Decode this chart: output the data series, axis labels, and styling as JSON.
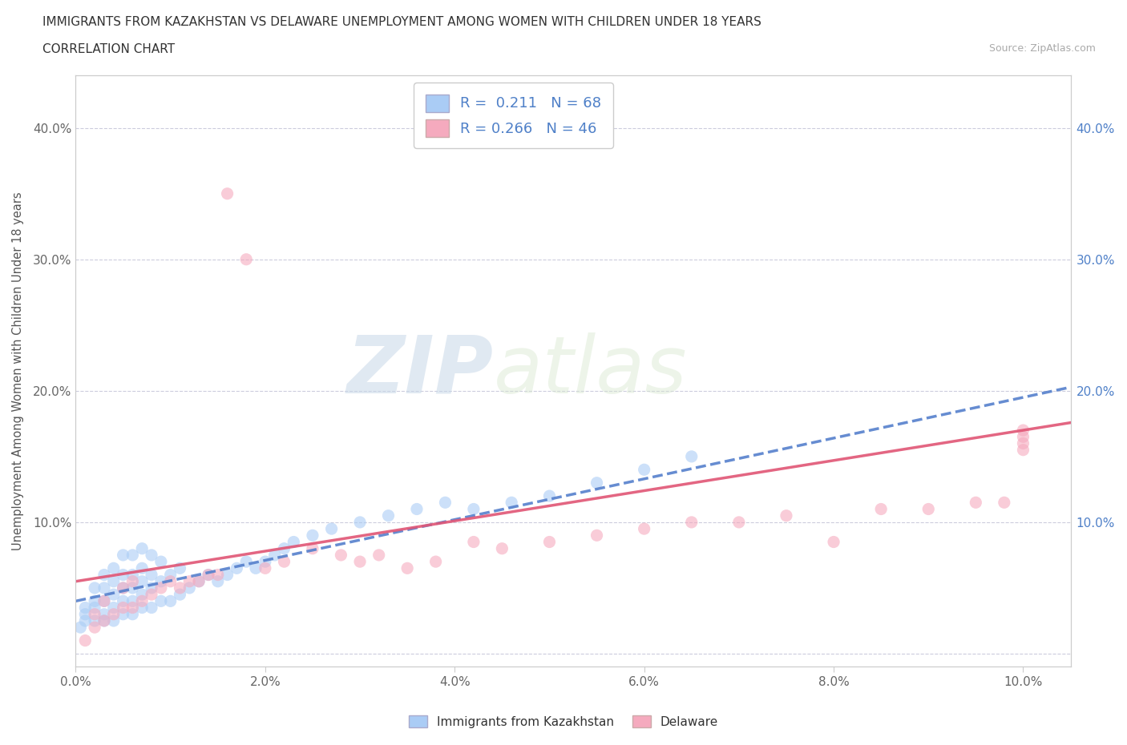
{
  "title_line1": "IMMIGRANTS FROM KAZAKHSTAN VS DELAWARE UNEMPLOYMENT AMONG WOMEN WITH CHILDREN UNDER 18 YEARS",
  "title_line2": "CORRELATION CHART",
  "source_text": "Source: ZipAtlas.com",
  "ylabel": "Unemployment Among Women with Children Under 18 years",
  "xlim": [
    0.0,
    0.105
  ],
  "ylim": [
    -0.01,
    0.44
  ],
  "xtick_vals": [
    0.0,
    0.02,
    0.04,
    0.06,
    0.08,
    0.1
  ],
  "xtick_labels": [
    "0.0%",
    "2.0%",
    "4.0%",
    "6.0%",
    "8.0%",
    "10.0%"
  ],
  "ytick_vals": [
    0.0,
    0.1,
    0.2,
    0.3,
    0.4
  ],
  "ytick_labels_left": [
    "",
    "10.0%",
    "20.0%",
    "30.0%",
    "40.0%"
  ],
  "ytick_labels_right": [
    "",
    "10.0%",
    "20.0%",
    "30.0%",
    "40.0%"
  ],
  "R1": "0.211",
  "N1": "68",
  "R2": "0.266",
  "N2": "46",
  "color_kaz": "#aaccf5",
  "color_del": "#f5aabe",
  "line_color_kaz": "#5580cc",
  "line_color_del": "#e05575",
  "right_tick_color": "#4f80c8",
  "watermark_zip": "ZIP",
  "watermark_atlas": "atlas",
  "legend_label1": "Immigrants from Kazakhstan",
  "legend_label2": "Delaware",
  "scatter_kaz_x": [
    0.0005,
    0.001,
    0.001,
    0.001,
    0.002,
    0.002,
    0.002,
    0.002,
    0.003,
    0.003,
    0.003,
    0.003,
    0.003,
    0.004,
    0.004,
    0.004,
    0.004,
    0.004,
    0.005,
    0.005,
    0.005,
    0.005,
    0.005,
    0.006,
    0.006,
    0.006,
    0.006,
    0.006,
    0.007,
    0.007,
    0.007,
    0.007,
    0.007,
    0.008,
    0.008,
    0.008,
    0.008,
    0.009,
    0.009,
    0.009,
    0.01,
    0.01,
    0.011,
    0.011,
    0.012,
    0.013,
    0.014,
    0.015,
    0.016,
    0.017,
    0.018,
    0.019,
    0.02,
    0.021,
    0.022,
    0.023,
    0.025,
    0.027,
    0.03,
    0.033,
    0.036,
    0.039,
    0.042,
    0.046,
    0.05,
    0.055,
    0.06,
    0.065
  ],
  "scatter_kaz_y": [
    0.02,
    0.025,
    0.03,
    0.035,
    0.025,
    0.035,
    0.04,
    0.05,
    0.025,
    0.03,
    0.04,
    0.05,
    0.06,
    0.025,
    0.035,
    0.045,
    0.055,
    0.065,
    0.03,
    0.04,
    0.05,
    0.06,
    0.075,
    0.03,
    0.04,
    0.05,
    0.06,
    0.075,
    0.035,
    0.045,
    0.055,
    0.065,
    0.08,
    0.035,
    0.05,
    0.06,
    0.075,
    0.04,
    0.055,
    0.07,
    0.04,
    0.06,
    0.045,
    0.065,
    0.05,
    0.055,
    0.06,
    0.055,
    0.06,
    0.065,
    0.07,
    0.065,
    0.07,
    0.075,
    0.08,
    0.085,
    0.09,
    0.095,
    0.1,
    0.105,
    0.11,
    0.115,
    0.11,
    0.115,
    0.12,
    0.13,
    0.14,
    0.15
  ],
  "scatter_del_x": [
    0.001,
    0.002,
    0.002,
    0.003,
    0.003,
    0.004,
    0.005,
    0.005,
    0.006,
    0.006,
    0.007,
    0.008,
    0.009,
    0.01,
    0.011,
    0.012,
    0.013,
    0.014,
    0.015,
    0.016,
    0.018,
    0.02,
    0.022,
    0.025,
    0.028,
    0.03,
    0.032,
    0.035,
    0.038,
    0.042,
    0.045,
    0.05,
    0.055,
    0.06,
    0.065,
    0.07,
    0.075,
    0.08,
    0.085,
    0.09,
    0.095,
    0.098,
    0.1,
    0.1,
    0.1,
    0.1
  ],
  "scatter_del_y": [
    0.01,
    0.02,
    0.03,
    0.025,
    0.04,
    0.03,
    0.035,
    0.05,
    0.035,
    0.055,
    0.04,
    0.045,
    0.05,
    0.055,
    0.05,
    0.055,
    0.055,
    0.06,
    0.06,
    0.35,
    0.3,
    0.065,
    0.07,
    0.08,
    0.075,
    0.07,
    0.075,
    0.065,
    0.07,
    0.085,
    0.08,
    0.085,
    0.09,
    0.095,
    0.1,
    0.1,
    0.105,
    0.085,
    0.11,
    0.11,
    0.115,
    0.115,
    0.17,
    0.16,
    0.155,
    0.165
  ]
}
